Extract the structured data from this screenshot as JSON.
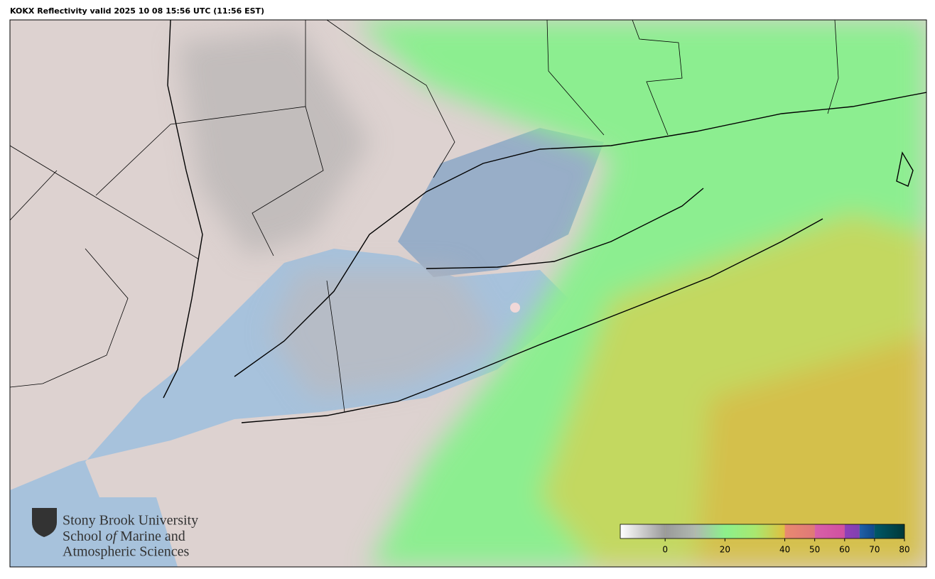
{
  "title": "KOKX Reflectivity valid 2025 10 08 15:56 UTC (11:56 EST)",
  "colorbar": {
    "range": [
      -15,
      80
    ],
    "ticks": [
      0,
      20,
      40,
      50,
      60,
      70,
      80
    ],
    "stops": [
      {
        "value": -15,
        "color": "#ffffff"
      },
      {
        "value": 0,
        "color": "#9a9a9a"
      },
      {
        "value": 10,
        "color": "#b0b8b0"
      },
      {
        "value": 20,
        "color": "#8cf08c"
      },
      {
        "value": 30,
        "color": "#a8e870"
      },
      {
        "value": 40,
        "color": "#e0c040"
      },
      {
        "value": 40,
        "color": "#e88a70"
      },
      {
        "value": 50,
        "color": "#e07878"
      },
      {
        "value": 50,
        "color": "#d860a8"
      },
      {
        "value": 60,
        "color": "#d050a0"
      },
      {
        "value": 60,
        "color": "#9040b8"
      },
      {
        "value": 65,
        "color": "#8040b0"
      },
      {
        "value": 65,
        "color": "#2060a8"
      },
      {
        "value": 70,
        "color": "#104888"
      },
      {
        "value": 70,
        "color": "#005868"
      },
      {
        "value": 80,
        "color": "#003838"
      }
    ]
  },
  "logo": {
    "line1": "Stony Brook University",
    "line2a": "School",
    "line2b": "of",
    "line2c": "Marine and",
    "line3": "Atmospheric Sciences"
  }
}
